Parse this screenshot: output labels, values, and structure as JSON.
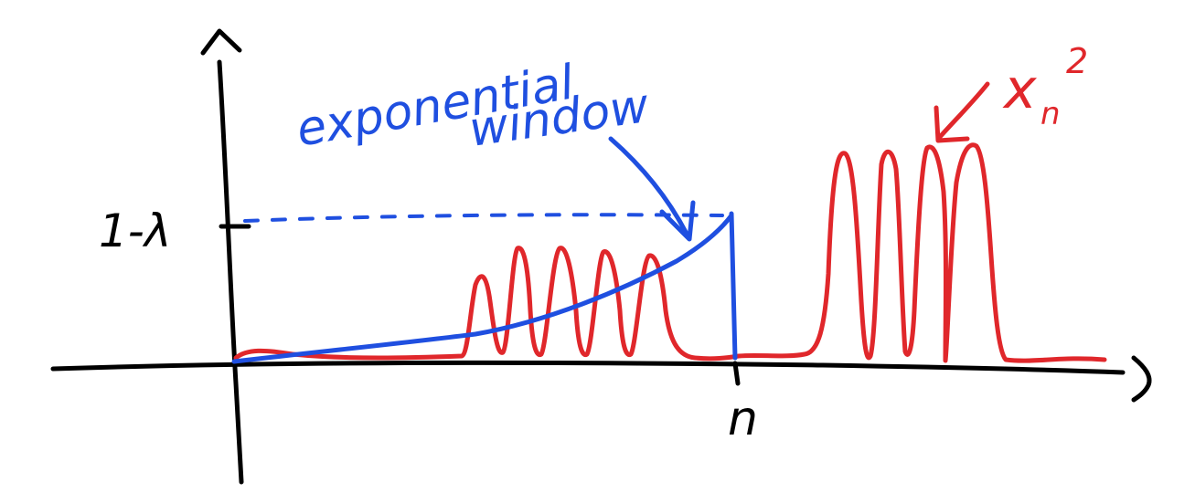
{
  "diagram": {
    "y_tick_label": "1-λ",
    "x_tick_label": "n",
    "window_label_line1": "exponential",
    "window_label_line2": "window",
    "signal_label_base": "x",
    "signal_label_sub": "n",
    "signal_label_sup": "2",
    "colors": {
      "axis": "#000000",
      "window": "#1f4fe0",
      "signal": "#e0272b"
    }
  }
}
